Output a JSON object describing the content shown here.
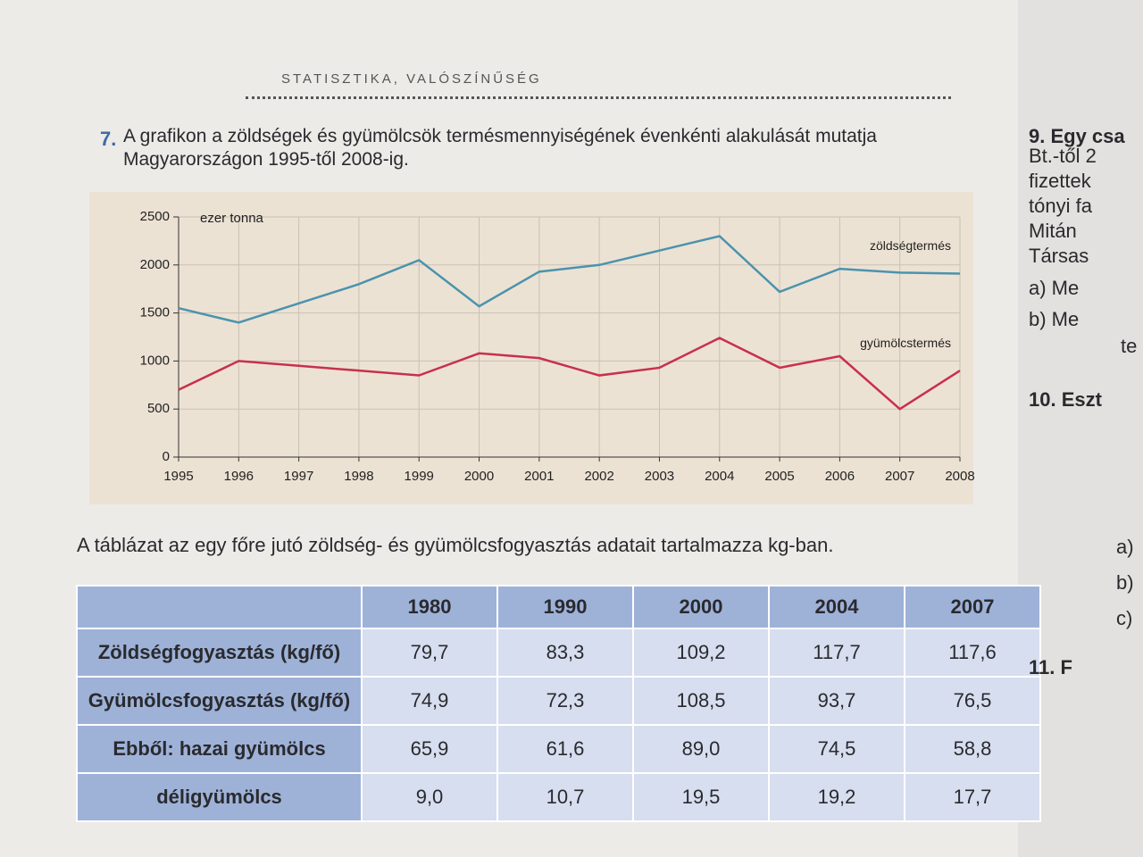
{
  "header": {
    "section": "STATISZTIKA, VALÓSZÍNŰSÉG"
  },
  "task": {
    "number": "7.",
    "text": "A grafikon a zöldségek és gyümölcsök termésmennyiségének évenkénti alakulását mutatja Magyarországon 1995-től 2008-ig."
  },
  "chart_data": {
    "type": "line",
    "y_label": "ezer tonna",
    "x": [
      1995,
      1996,
      1997,
      1998,
      1999,
      2000,
      2001,
      2002,
      2003,
      2004,
      2005,
      2006,
      2007,
      2008
    ],
    "xlim": [
      1995,
      2008
    ],
    "xticks": [
      1995,
      1996,
      1997,
      1998,
      1999,
      2000,
      2001,
      2002,
      2003,
      2004,
      2005,
      2006,
      2007,
      2008
    ],
    "ylim": [
      0,
      2500
    ],
    "yticks": [
      0,
      500,
      1000,
      1500,
      2000,
      2500
    ],
    "grid": true,
    "series": [
      {
        "name": "zöldségtermés",
        "color": "#4b93ad",
        "values": [
          1550,
          1400,
          1600,
          1800,
          2050,
          1570,
          1930,
          2000,
          2150,
          2300,
          1720,
          1960,
          1920,
          1910
        ]
      },
      {
        "name": "gyümölcstermés",
        "color": "#c8304c",
        "values": [
          700,
          1000,
          950,
          900,
          850,
          1080,
          1030,
          850,
          930,
          1240,
          930,
          1050,
          500,
          900
        ]
      }
    ]
  },
  "table_intro": "A táblázat az egy főre jutó zöldség- és gyümölcsfogyasztás adatait tartalmazza kg-ban.",
  "table": {
    "header": [
      "1980",
      "1990",
      "2000",
      "2004",
      "2007"
    ],
    "rows": [
      [
        "Zöldségfogyasztás (kg/fő)",
        "79,7",
        "83,3",
        "109,2",
        "117,7",
        "117,6"
      ],
      [
        "Gyümölcsfogyasztás (kg/fő)",
        "74,9",
        "72,3",
        "108,5",
        "93,7",
        "76,5"
      ],
      [
        "Ebből: hazai gyümölcs",
        "65,9",
        "61,6",
        "89,0",
        "74,5",
        "58,8"
      ],
      [
        "déligyümölcs",
        "9,0",
        "10,7",
        "19,5",
        "19,2",
        "17,7"
      ]
    ]
  },
  "side": [
    "9. Egy csa",
    "Bt.-től 2",
    "fizettek",
    "tónyi fa",
    "Mitán",
    "Társas",
    "a) Me",
    "b) Me",
    "te",
    "10. Eszt",
    "a)",
    "b)",
    "c)",
    "11. F"
  ]
}
